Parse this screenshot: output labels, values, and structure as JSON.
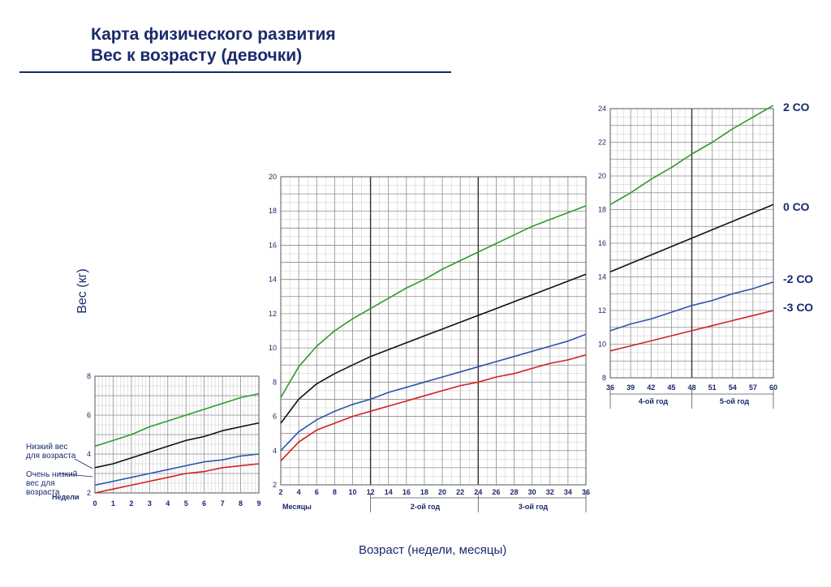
{
  "title_line1": "Карта физического развития",
  "title_line2": "Вес к возрасту (девочки)",
  "y_axis_label": "Вес (кг)",
  "x_axis_label": "Возраст (недели, месяцы)",
  "curve_labels": [
    "2 СО",
    "0 СО",
    "-2 СО",
    "-3 СО"
  ],
  "annotation_low": [
    "Низкий вес",
    "для возраста"
  ],
  "annotation_very_low": [
    "Очень низкий",
    "вес для",
    "возраста"
  ],
  "colors": {
    "plus2": "#2e9a2e",
    "zero": "#111111",
    "minus2": "#2c56a8",
    "minus3": "#d42020",
    "grid": "#9a9a9a",
    "text": "#1a2a6c"
  },
  "chart_data": [
    {
      "type": "line",
      "x_unit_label": "Недели",
      "x": [
        0,
        1,
        2,
        3,
        4,
        5,
        6,
        7,
        8,
        9
      ],
      "x_ticks": [
        "0",
        "1",
        "2",
        "3",
        "4",
        "5",
        "6",
        "7",
        "8",
        "9"
      ],
      "xlim": [
        0,
        9
      ],
      "ylim": [
        2,
        8
      ],
      "y_ticks": [
        "2",
        "4",
        "6",
        "8"
      ],
      "series": [
        {
          "name": "2 СО",
          "values": [
            4.4,
            4.7,
            5.0,
            5.4,
            5.7,
            6.0,
            6.3,
            6.6,
            6.9,
            7.1
          ]
        },
        {
          "name": "0 СО",
          "values": [
            3.3,
            3.5,
            3.8,
            4.1,
            4.4,
            4.7,
            4.9,
            5.2,
            5.4,
            5.6
          ]
        },
        {
          "name": "-2 СО",
          "values": [
            2.4,
            2.6,
            2.8,
            3.0,
            3.2,
            3.4,
            3.6,
            3.7,
            3.9,
            4.0
          ]
        },
        {
          "name": "-3 СО",
          "values": [
            2.0,
            2.2,
            2.4,
            2.6,
            2.8,
            3.0,
            3.1,
            3.3,
            3.4,
            3.5
          ]
        }
      ]
    },
    {
      "type": "line",
      "x_unit_label": "Месяцы",
      "segments": [
        "2-ой год",
        "3-ой год"
      ],
      "x": [
        2,
        4,
        6,
        8,
        10,
        12,
        14,
        16,
        18,
        20,
        22,
        24,
        26,
        28,
        30,
        32,
        34,
        36
      ],
      "x_ticks": [
        "2",
        "4",
        "6",
        "8",
        "10",
        "12",
        "14",
        "16",
        "18",
        "20",
        "22",
        "24",
        "26",
        "28",
        "30",
        "32",
        "34",
        "36"
      ],
      "xlim": [
        2,
        36
      ],
      "ylim": [
        2,
        20
      ],
      "y_ticks": [
        "2",
        "4",
        "6",
        "8",
        "10",
        "12",
        "14",
        "16",
        "18",
        "20"
      ],
      "series": [
        {
          "name": "2 СО",
          "values": [
            7.1,
            8.9,
            10.1,
            11.0,
            11.7,
            12.3,
            12.9,
            13.5,
            14.0,
            14.6,
            15.1,
            15.6,
            16.1,
            16.6,
            17.1,
            17.5,
            17.9,
            18.3
          ]
        },
        {
          "name": "0 СО",
          "values": [
            5.6,
            7.0,
            7.9,
            8.5,
            9.0,
            9.5,
            9.9,
            10.3,
            10.7,
            11.1,
            11.5,
            11.9,
            12.3,
            12.7,
            13.1,
            13.5,
            13.9,
            14.3
          ]
        },
        {
          "name": "-2 СО",
          "values": [
            4.0,
            5.1,
            5.8,
            6.3,
            6.7,
            7.0,
            7.4,
            7.7,
            8.0,
            8.3,
            8.6,
            8.9,
            9.2,
            9.5,
            9.8,
            10.1,
            10.4,
            10.8
          ]
        },
        {
          "name": "-3 СО",
          "values": [
            3.4,
            4.5,
            5.2,
            5.6,
            6.0,
            6.3,
            6.6,
            6.9,
            7.2,
            7.5,
            7.8,
            8.0,
            8.3,
            8.5,
            8.8,
            9.1,
            9.3,
            9.6
          ]
        }
      ]
    },
    {
      "type": "line",
      "segments": [
        "4-ой год",
        "5-ой год"
      ],
      "x": [
        36,
        39,
        42,
        45,
        48,
        51,
        54,
        57,
        60
      ],
      "x_ticks": [
        "36",
        "39",
        "42",
        "45",
        "48",
        "51",
        "54",
        "57",
        "60"
      ],
      "xlim": [
        36,
        60
      ],
      "ylim": [
        8,
        24
      ],
      "y_ticks": [
        "8",
        "10",
        "12",
        "14",
        "16",
        "18",
        "20",
        "22",
        "24"
      ],
      "series": [
        {
          "name": "2 СО",
          "values": [
            18.3,
            19.0,
            19.8,
            20.5,
            21.3,
            22.0,
            22.8,
            23.5,
            24.2
          ]
        },
        {
          "name": "0 СО",
          "values": [
            14.3,
            14.8,
            15.3,
            15.8,
            16.3,
            16.8,
            17.3,
            17.8,
            18.3
          ]
        },
        {
          "name": "-2 СО",
          "values": [
            10.8,
            11.2,
            11.5,
            11.9,
            12.3,
            12.6,
            13.0,
            13.3,
            13.7
          ]
        },
        {
          "name": "-3 СО",
          "values": [
            9.6,
            9.9,
            10.2,
            10.5,
            10.8,
            11.1,
            11.4,
            11.7,
            12.0
          ]
        }
      ]
    }
  ]
}
